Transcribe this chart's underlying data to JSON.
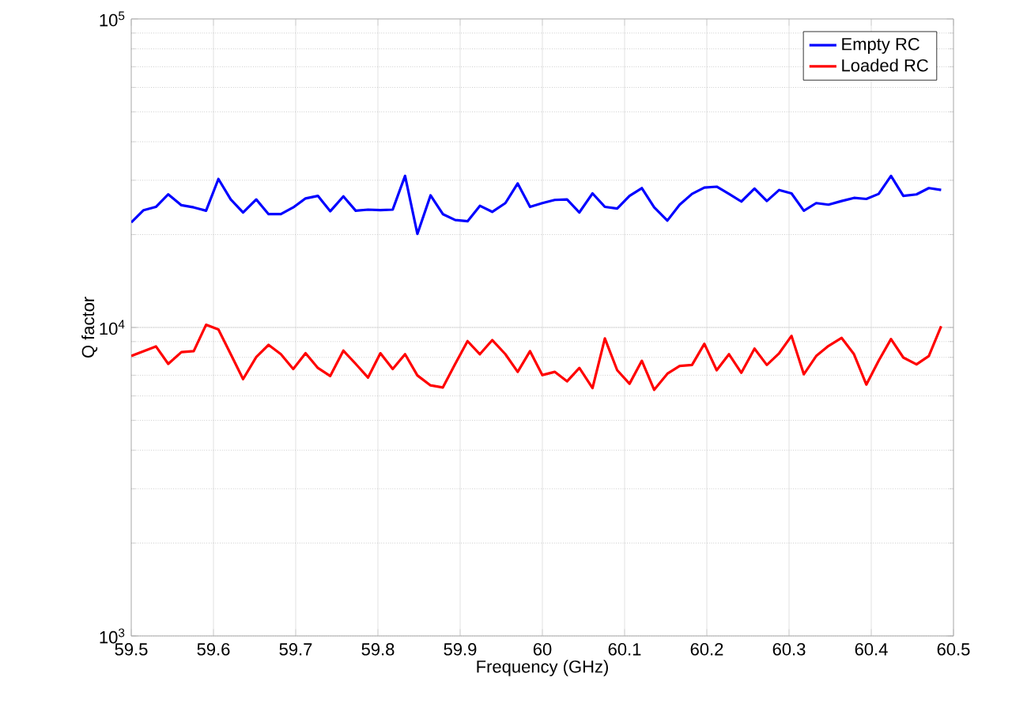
{
  "chart_data": {
    "type": "line",
    "xlabel": "Frequency (GHz)",
    "ylabel": "Q factor",
    "x": [
      59.5,
      59.515,
      59.53,
      59.545,
      59.561,
      59.576,
      59.591,
      59.606,
      59.621,
      59.636,
      59.652,
      59.667,
      59.682,
      59.697,
      59.712,
      59.727,
      59.742,
      59.758,
      59.773,
      59.788,
      59.803,
      59.818,
      59.833,
      59.848,
      59.864,
      59.879,
      59.894,
      59.909,
      59.924,
      59.939,
      59.955,
      59.97,
      59.985,
      60.0,
      60.015,
      60.03,
      60.045,
      60.061,
      60.076,
      60.091,
      60.106,
      60.121,
      60.136,
      60.152,
      60.167,
      60.182,
      60.197,
      60.212,
      60.227,
      60.242,
      60.258,
      60.273,
      60.288,
      60.303,
      60.318,
      60.333,
      60.348,
      60.364,
      60.379,
      60.394,
      60.409,
      60.424,
      60.439,
      60.455,
      60.47,
      60.485
    ],
    "series": [
      {
        "name": "Empty RC",
        "color": "#0000ff",
        "values": [
          21900,
          24000,
          24600,
          27000,
          24900,
          24500,
          23900,
          30300,
          26000,
          23600,
          26000,
          23300,
          23300,
          24500,
          26200,
          26700,
          23800,
          26600,
          23900,
          24100,
          24000,
          24100,
          31000,
          20100,
          26800,
          23300,
          22300,
          22100,
          24800,
          23700,
          25300,
          29300,
          24600,
          25300,
          25900,
          26000,
          23600,
          27200,
          24600,
          24300,
          26700,
          28300,
          24500,
          22200,
          25000,
          27100,
          28400,
          28600,
          27100,
          25600,
          28200,
          25700,
          27900,
          27200,
          23900,
          25300,
          25000,
          25700,
          26300,
          26100,
          27100,
          31000,
          26700,
          27000,
          28300,
          27900
        ]
      },
      {
        "name": "Loaded RC",
        "color": "#ff0000",
        "values": [
          8080,
          8380,
          8680,
          7620,
          8320,
          8380,
          10200,
          9850,
          8190,
          6800,
          8020,
          8780,
          8190,
          7330,
          8250,
          7390,
          6960,
          8410,
          7620,
          6880,
          8250,
          7330,
          8190,
          6990,
          6490,
          6390,
          7620,
          9030,
          8190,
          9100,
          8190,
          7180,
          8380,
          7010,
          7180,
          6690,
          7390,
          6360,
          9210,
          7270,
          6570,
          7800,
          6280,
          7080,
          7500,
          7560,
          8850,
          7270,
          8190,
          7130,
          8540,
          7560,
          8250,
          9390,
          7050,
          8080,
          8710,
          9250,
          8190,
          6530,
          7800,
          9170,
          7990,
          7590,
          8080,
          10100
        ]
      }
    ],
    "xlim": [
      59.5,
      60.5
    ],
    "xticks": [
      59.5,
      59.6,
      59.7,
      59.8,
      59.9,
      60,
      60.1,
      60.2,
      60.3,
      60.4,
      60.5
    ],
    "ylim": [
      1000,
      100000
    ],
    "yticks": [
      {
        "value": 1000,
        "label": "10$^{3}$"
      },
      {
        "value": 10000,
        "label": "10$^{4}$"
      },
      {
        "value": 100000,
        "label": "10$^{5}$"
      }
    ],
    "log": "y",
    "grid": true,
    "legend": "top right"
  }
}
